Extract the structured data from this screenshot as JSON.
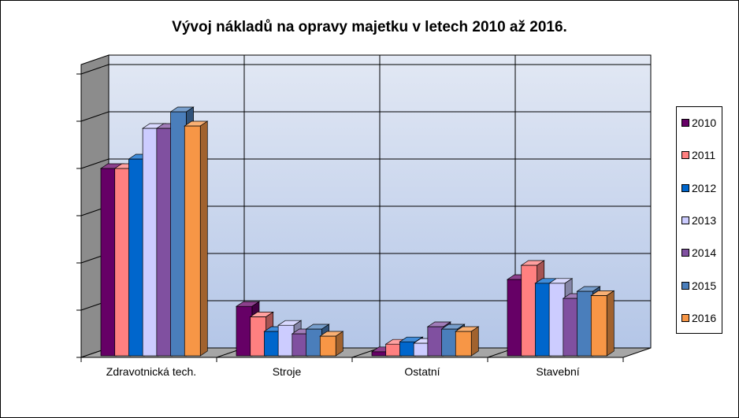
{
  "chart_data": {
    "type": "bar",
    "title": "Vývoj nákladů na opravy majetku v letech 2010 až 2016.",
    "xlabel": "",
    "ylabel": "",
    "ylim": [
      0,
      620
    ],
    "categories": [
      "Zdravotnická tech.",
      "Stroje",
      "Ostatní",
      "Stavební"
    ],
    "series": [
      {
        "name": "2010",
        "color": "#660066",
        "values": [
          400,
          108,
          12,
          165
        ]
      },
      {
        "name": "2011",
        "color": "#FF8080",
        "values": [
          400,
          86,
          28,
          195
        ]
      },
      {
        "name": "2012",
        "color": "#0066CC",
        "values": [
          420,
          55,
          33,
          157
        ]
      },
      {
        "name": "2013",
        "color": "#CCCCFF",
        "values": [
          485,
          68,
          30,
          157
        ]
      },
      {
        "name": "2014",
        "color": "#8050A0",
        "values": [
          485,
          50,
          65,
          125
        ]
      },
      {
        "name": "2015",
        "color": "#4A7EBB",
        "values": [
          520,
          60,
          60,
          140
        ]
      },
      {
        "name": "2016",
        "color": "#F79646",
        "values": [
          490,
          45,
          55,
          131
        ]
      }
    ],
    "legend_position": "right",
    "grid": true
  }
}
